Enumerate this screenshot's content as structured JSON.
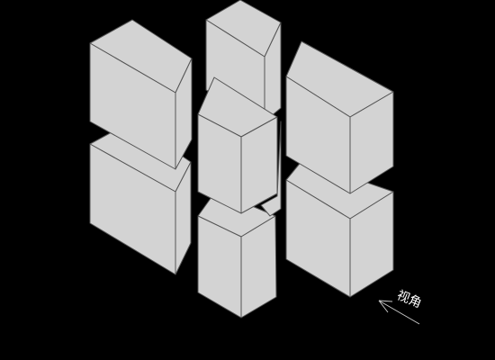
{
  "diagram": {
    "background_color": "#000000",
    "block_fill_color": "#d3d3d3",
    "block_edge_color": "#555555",
    "block_count": 8,
    "view_indicator": {
      "label": "视角",
      "icon": "arrow-up-left-icon"
    }
  }
}
